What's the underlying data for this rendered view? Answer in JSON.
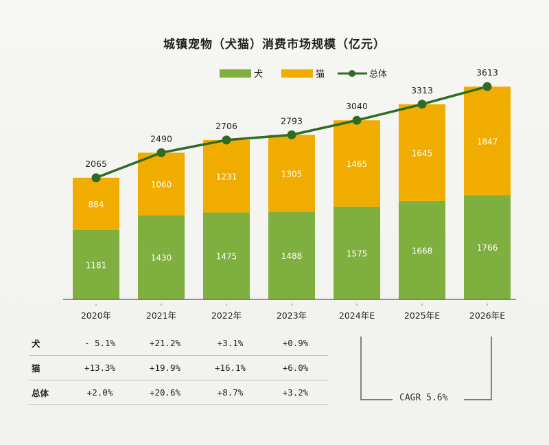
{
  "page": {
    "title": "城镇宠物（犬猫）消费市场规模（亿元）"
  },
  "colors": {
    "dog": "#7faf3f",
    "cat": "#f0ad00",
    "total_line": "#2f6b22",
    "axis": "#555555"
  },
  "chart_data": {
    "type": "bar",
    "stacked": true,
    "title": "城镇宠物（犬猫）消费市场规模（亿元）",
    "categories": [
      "2020年",
      "2021年",
      "2022年",
      "2023年",
      "2024年E",
      "2025年E",
      "2026年E"
    ],
    "series": [
      {
        "name": "犬",
        "type": "bar",
        "values": [
          1181,
          1430,
          1475,
          1488,
          1575,
          1668,
          1766
        ]
      },
      {
        "name": "猫",
        "type": "bar",
        "values": [
          884,
          1060,
          1231,
          1305,
          1465,
          1645,
          1847
        ]
      },
      {
        "name": "总体",
        "type": "line",
        "values": [
          2065,
          2490,
          2706,
          2793,
          3040,
          3313,
          3613
        ]
      }
    ],
    "legend_position": "top-center",
    "ylim": [
      0,
      3800
    ],
    "grid": false
  },
  "table": {
    "rows": [
      {
        "label": "犬",
        "values": [
          "- 5.1%",
          "+21.2%",
          "+3.1%",
          "+0.9%"
        ]
      },
      {
        "label": "猫",
        "values": [
          "+13.3%",
          "+19.9%",
          "+16.1%",
          "+6.0%"
        ]
      },
      {
        "label": "总体",
        "values": [
          "+2.0%",
          "+20.6%",
          "+8.7%",
          "+3.2%"
        ]
      }
    ]
  },
  "cagr": {
    "label": "CAGR 5.6%"
  }
}
